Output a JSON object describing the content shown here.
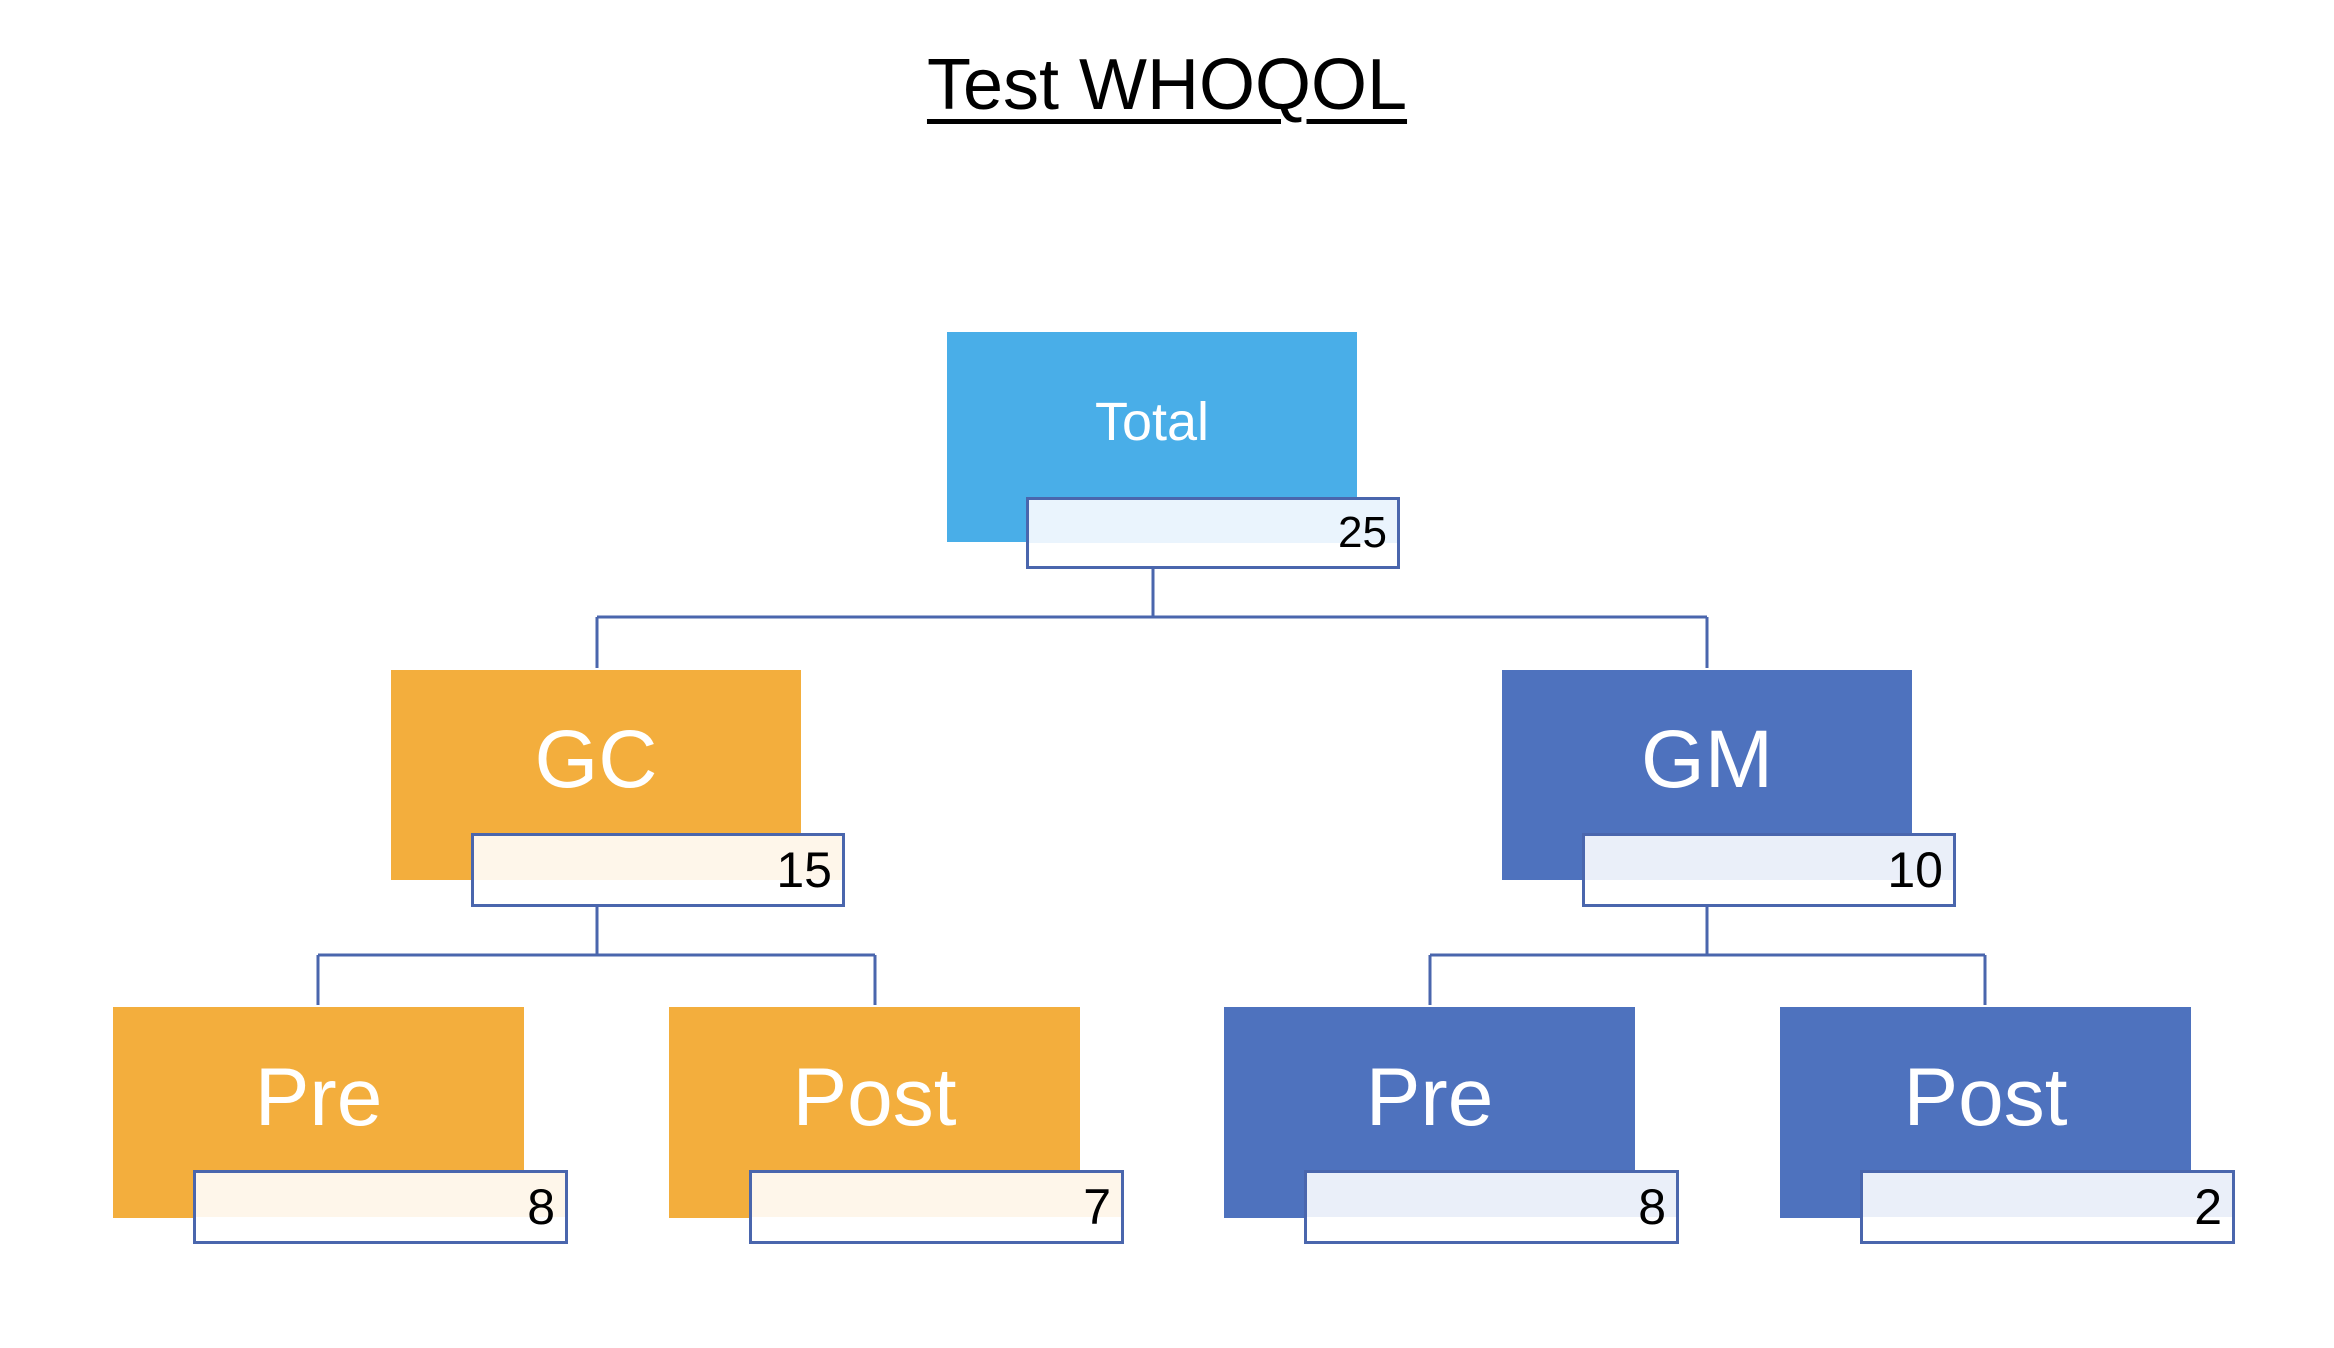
{
  "title": "Test WHOQOL",
  "colors": {
    "root": "#49aee8",
    "gc": "#f3ae3d",
    "gm": "#4e72be",
    "connector": "#4a66ad",
    "gc_tint": "#fef6ea",
    "gm_tint": "#eaeff9",
    "root_tint": "#eaf4fd"
  },
  "tree": {
    "root": {
      "label": "Total",
      "value": "25"
    },
    "gc": {
      "label": "GC",
      "value": "15"
    },
    "gm": {
      "label": "GM",
      "value": "10"
    },
    "gc_pre": {
      "label": "Pre",
      "value": "8"
    },
    "gc_post": {
      "label": "Post",
      "value": "7"
    },
    "gm_pre": {
      "label": "Pre",
      "value": "8"
    },
    "gm_post": {
      "label": "Post",
      "value": "2"
    }
  }
}
